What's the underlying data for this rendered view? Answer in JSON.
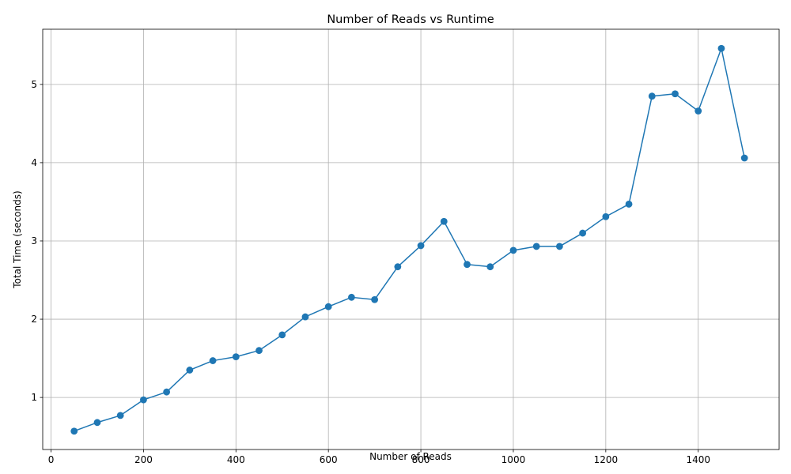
{
  "chart_data": {
    "type": "line",
    "title": "Number of Reads vs Runtime",
    "xlabel": "Number of Reads",
    "ylabel": "Total Time (seconds)",
    "xlim": [
      -18,
      1575
    ],
    "ylim": [
      0.335,
      5.705
    ],
    "xticks": [
      0,
      200,
      400,
      600,
      800,
      1000,
      1200,
      1400
    ],
    "yticks": [
      1,
      2,
      3,
      4,
      5
    ],
    "grid": true,
    "series": [
      {
        "color": "#1f77b4",
        "marker": "circle",
        "x": [
          50,
          100,
          150,
          200,
          250,
          300,
          350,
          400,
          450,
          500,
          550,
          600,
          650,
          700,
          750,
          800,
          850,
          900,
          950,
          1000,
          1050,
          1100,
          1150,
          1200,
          1250,
          1300,
          1350,
          1400,
          1450,
          1500
        ],
        "y": [
          0.57,
          0.68,
          0.77,
          0.97,
          1.07,
          1.35,
          1.47,
          1.52,
          1.6,
          1.8,
          2.03,
          2.16,
          2.28,
          2.25,
          2.67,
          2.94,
          3.25,
          2.7,
          2.67,
          2.88,
          2.93,
          2.93,
          3.1,
          3.31,
          3.47,
          4.85,
          4.88,
          4.66,
          5.46,
          4.06
        ]
      }
    ]
  }
}
